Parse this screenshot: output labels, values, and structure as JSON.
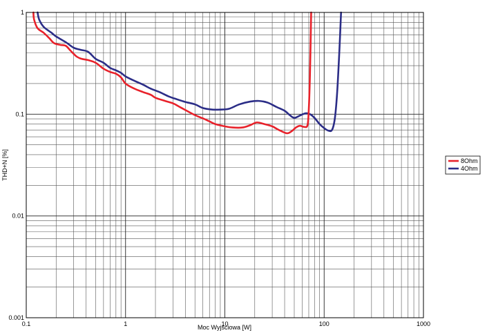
{
  "chart_data": {
    "type": "line",
    "title": "",
    "xlabel": "Moc Wyjściowa [W]",
    "ylabel": "THD+N [%]",
    "x_scale": "log",
    "y_scale": "log",
    "xlim": [
      0.1,
      1000
    ],
    "ylim": [
      0.001,
      1
    ],
    "grid": true,
    "legend_position": "right",
    "x_ticks": [
      "0.1",
      "1",
      "10",
      "100",
      "1000"
    ],
    "y_ticks": [
      "1",
      "0.1",
      "0.01",
      "0.001"
    ],
    "series": [
      {
        "name": "8Ohm",
        "color": "#e8212a",
        "points": [
          [
            0.118,
            1.0
          ],
          [
            0.12,
            0.85
          ],
          [
            0.13,
            0.7
          ],
          [
            0.15,
            0.63
          ],
          [
            0.17,
            0.56
          ],
          [
            0.19,
            0.5
          ],
          [
            0.22,
            0.48
          ],
          [
            0.25,
            0.47
          ],
          [
            0.28,
            0.42
          ],
          [
            0.32,
            0.37
          ],
          [
            0.36,
            0.35
          ],
          [
            0.42,
            0.34
          ],
          [
            0.5,
            0.32
          ],
          [
            0.6,
            0.28
          ],
          [
            0.7,
            0.26
          ],
          [
            0.8,
            0.25
          ],
          [
            0.9,
            0.23
          ],
          [
            1.0,
            0.2
          ],
          [
            1.2,
            0.18
          ],
          [
            1.5,
            0.165
          ],
          [
            1.8,
            0.155
          ],
          [
            2.0,
            0.145
          ],
          [
            2.5,
            0.135
          ],
          [
            3.0,
            0.128
          ],
          [
            3.5,
            0.118
          ],
          [
            4.0,
            0.11
          ],
          [
            5.0,
            0.098
          ],
          [
            6.0,
            0.091
          ],
          [
            7.0,
            0.085
          ],
          [
            8.0,
            0.08
          ],
          [
            10.0,
            0.076
          ],
          [
            12.0,
            0.074
          ],
          [
            15.0,
            0.074
          ],
          [
            18.0,
            0.078
          ],
          [
            21.0,
            0.083
          ],
          [
            25.0,
            0.08
          ],
          [
            30.0,
            0.076
          ],
          [
            35.0,
            0.07
          ],
          [
            42.0,
            0.065
          ],
          [
            47.0,
            0.068
          ],
          [
            52.0,
            0.074
          ],
          [
            57.0,
            0.077
          ],
          [
            63.0,
            0.075
          ],
          [
            68.0,
            0.078
          ],
          [
            70.0,
            0.11
          ],
          [
            72.0,
            0.25
          ],
          [
            74.0,
            1.0
          ]
        ]
      },
      {
        "name": "4Ohm",
        "color": "#2b2d87",
        "points": [
          [
            0.13,
            1.0
          ],
          [
            0.135,
            0.85
          ],
          [
            0.15,
            0.72
          ],
          [
            0.18,
            0.63
          ],
          [
            0.2,
            0.58
          ],
          [
            0.25,
            0.51
          ],
          [
            0.3,
            0.45
          ],
          [
            0.35,
            0.43
          ],
          [
            0.42,
            0.41
          ],
          [
            0.5,
            0.35
          ],
          [
            0.6,
            0.32
          ],
          [
            0.7,
            0.285
          ],
          [
            0.8,
            0.27
          ],
          [
            0.9,
            0.255
          ],
          [
            1.0,
            0.235
          ],
          [
            1.2,
            0.215
          ],
          [
            1.5,
            0.195
          ],
          [
            1.8,
            0.178
          ],
          [
            2.2,
            0.165
          ],
          [
            2.7,
            0.15
          ],
          [
            3.3,
            0.14
          ],
          [
            4.0,
            0.132
          ],
          [
            5.0,
            0.125
          ],
          [
            6.0,
            0.115
          ],
          [
            7.5,
            0.111
          ],
          [
            9.0,
            0.111
          ],
          [
            11.0,
            0.113
          ],
          [
            14.0,
            0.125
          ],
          [
            18.0,
            0.133
          ],
          [
            22.0,
            0.135
          ],
          [
            27.0,
            0.13
          ],
          [
            33.0,
            0.118
          ],
          [
            40.0,
            0.108
          ],
          [
            45.0,
            0.098
          ],
          [
            50.0,
            0.092
          ],
          [
            57.0,
            0.097
          ],
          [
            65.0,
            0.102
          ],
          [
            72.0,
            0.1
          ],
          [
            80.0,
            0.092
          ],
          [
            90.0,
            0.08
          ],
          [
            100.0,
            0.073
          ],
          [
            110.0,
            0.069
          ],
          [
            120.0,
            0.07
          ],
          [
            128.0,
            0.09
          ],
          [
            135.0,
            0.16
          ],
          [
            142.0,
            0.4
          ],
          [
            148.0,
            1.0
          ]
        ]
      }
    ]
  }
}
